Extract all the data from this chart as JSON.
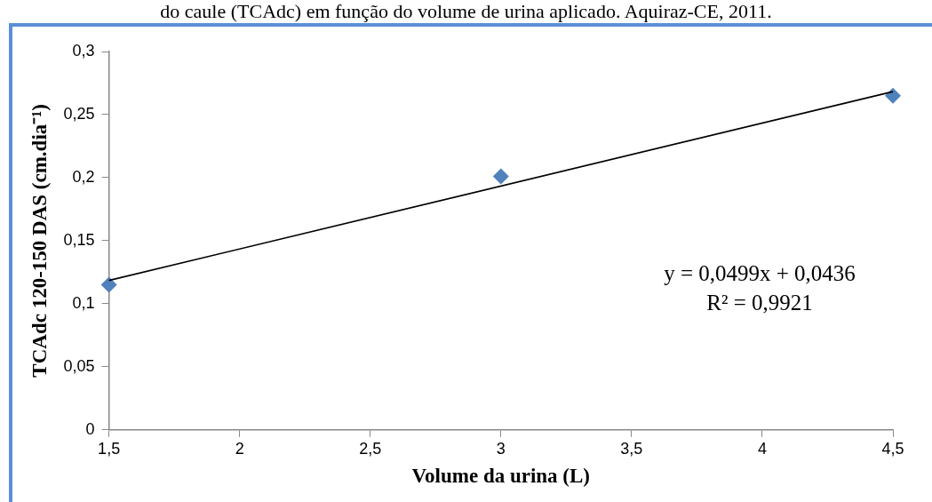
{
  "chart_data": {
    "type": "scatter",
    "xlabel": "Volume da urina (L)",
    "ylabel": "TCAdc 120-150 DAS (cm.dia⁻¹)",
    "annotations": [
      "do caule (TCAdc) em função do volume de urina aplicado. Aquiraz-CE, 2011.",
      "y = 0,0499x + 0,0436",
      "R² = 0,9921"
    ],
    "x": [
      1.5,
      3,
      4.5
    ],
    "series": [
      {
        "color": "#4f81bd",
        "values": [
          0.115,
          0.201,
          0.265
        ]
      },
      {
        "type": "line",
        "color": "#000000",
        "x": [
          1.5,
          4.5
        ],
        "values": [
          0.1185,
          0.2682
        ],
        "marker": "none"
      }
    ],
    "marker": "diamond",
    "xlim": [
      1.5,
      4.5
    ],
    "xticks": [
      {
        "value": 1.5,
        "label": "1,5"
      },
      2,
      {
        "value": 2.5,
        "label": "2,5"
      },
      3,
      {
        "value": 3.5,
        "label": "3,5"
      },
      4,
      {
        "value": 4.5,
        "label": "4,5"
      }
    ],
    "ylim": [
      0,
      0.3
    ],
    "yticks": [
      0,
      {
        "value": 0.05,
        "label": "0,05"
      },
      {
        "value": 0.1,
        "label": "0,1"
      },
      {
        "value": 0.15,
        "label": "0,15"
      },
      {
        "value": 0.2,
        "label": "0,2"
      },
      {
        "value": 0.25,
        "label": "0,25"
      },
      {
        "value": 0.3,
        "label": "0,3"
      }
    ],
    "grid": false,
    "legend": false
  }
}
